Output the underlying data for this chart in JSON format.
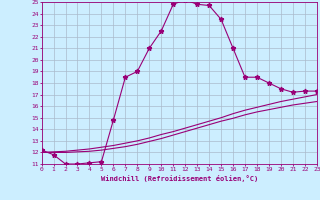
{
  "title": "",
  "xlabel": "Windchill (Refroidissement éolien,°C)",
  "ylabel": "",
  "bg_color": "#cceeff",
  "line_color": "#990077",
  "grid_color": "#aabbcc",
  "x_ticks": [
    0,
    1,
    2,
    3,
    4,
    5,
    6,
    7,
    8,
    9,
    10,
    11,
    12,
    13,
    14,
    15,
    16,
    17,
    18,
    19,
    20,
    21,
    22,
    23
  ],
  "y_ticks": [
    11,
    12,
    13,
    14,
    15,
    16,
    17,
    18,
    19,
    20,
    21,
    22,
    23,
    24,
    25
  ],
  "ylim": [
    11,
    25
  ],
  "xlim": [
    0,
    23
  ],
  "curve1_x": [
    0,
    1,
    2,
    3,
    4,
    5,
    6,
    7,
    8,
    9,
    10,
    11,
    12,
    13,
    14,
    15,
    16,
    17,
    18,
    19,
    20,
    21,
    22,
    23
  ],
  "curve1_y": [
    12.2,
    11.8,
    11.0,
    11.0,
    11.1,
    11.2,
    14.8,
    18.5,
    19.0,
    21.0,
    22.5,
    24.8,
    25.2,
    24.8,
    24.7,
    23.5,
    21.0,
    18.5,
    18.5,
    18.0,
    17.5,
    17.2,
    17.3,
    17.3
  ],
  "curve2_x": [
    0,
    1,
    2,
    3,
    4,
    5,
    6,
    7,
    8,
    9,
    10,
    11,
    12,
    13,
    14,
    15,
    16,
    17,
    18,
    19,
    20,
    21,
    22,
    23
  ],
  "curve2_y": [
    12.0,
    12.05,
    12.1,
    12.2,
    12.3,
    12.45,
    12.6,
    12.8,
    13.0,
    13.25,
    13.55,
    13.8,
    14.1,
    14.4,
    14.7,
    15.0,
    15.35,
    15.65,
    15.9,
    16.15,
    16.4,
    16.6,
    16.8,
    17.0
  ],
  "curve3_x": [
    0,
    1,
    2,
    3,
    4,
    5,
    6,
    7,
    8,
    9,
    10,
    11,
    12,
    13,
    14,
    15,
    16,
    17,
    18,
    19,
    20,
    21,
    22,
    23
  ],
  "curve3_y": [
    12.0,
    12.0,
    12.0,
    12.05,
    12.1,
    12.2,
    12.35,
    12.5,
    12.7,
    12.95,
    13.2,
    13.5,
    13.8,
    14.1,
    14.4,
    14.7,
    14.95,
    15.25,
    15.5,
    15.7,
    15.9,
    16.1,
    16.25,
    16.4
  ]
}
